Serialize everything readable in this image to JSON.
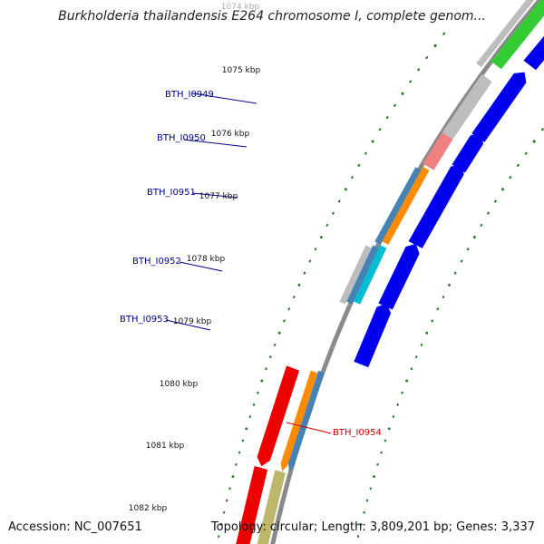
{
  "title": "Burkholderia thailandensis E264 chromosome I, complete genom...",
  "footer": {
    "accession": "Accession: NC_007651",
    "topology": "Topology: circular; Length: 3,809,201 bp; Genes: 3,337"
  },
  "kbp_labels": [
    "1074 kbp",
    "1075 kbp",
    "1076 kbp",
    "1077 kbp",
    "1078 kbp",
    "1079 kbp",
    "1080 kbp",
    "1081 kbp",
    "1082 kbp"
  ],
  "gene_labels": [
    "BTH_I0949",
    "BTH_I0950",
    "BTH_I0951",
    "BTH_I0952",
    "BTH_I0953",
    "BTH_I0954"
  ],
  "colors": {
    "backbone": "#8a8a8a",
    "tick": "#1e7a1e",
    "label_left": "#00008b",
    "label_right": "#cc0000",
    "cds": "#0000ee",
    "gene_green": "#33cc33",
    "gene_gray": "#bdbdbd",
    "gene_pink": "#f08080",
    "gene_orange": "#ff8c00",
    "gene_steel": "#4682b4",
    "gene_cyan": "#00bcd4",
    "gene_red": "#ee0000",
    "gene_khaki": "#bdb76b"
  }
}
